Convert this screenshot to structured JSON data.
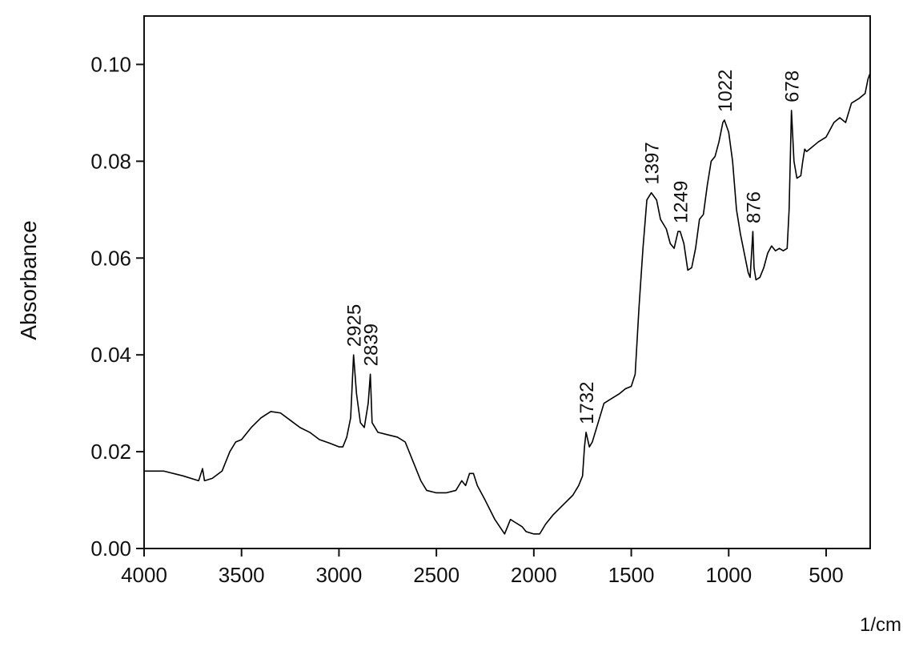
{
  "chart_data": {
    "type": "line",
    "ylabel": "Absorbance",
    "xlabel": "1/cm",
    "color": "#000000",
    "xlim": [
      4000,
      274
    ],
    "ylim": [
      0,
      0.11
    ],
    "xticks": [
      4000,
      3500,
      3000,
      2500,
      2000,
      1500,
      1000,
      500
    ],
    "yticks": [
      {
        "value": 0,
        "label": "0.00"
      },
      {
        "value": 0.02,
        "label": "0.02"
      },
      {
        "value": 0.04,
        "label": "0.04"
      },
      {
        "value": 0.06,
        "label": "0.06"
      },
      {
        "value": 0.08,
        "label": "0.08"
      },
      {
        "value": 0.1,
        "label": "0.10"
      }
    ],
    "peaks": [
      2925,
      2839,
      1732,
      1397,
      1249,
      1022,
      876,
      678
    ],
    "x": [
      4000,
      3900,
      3800,
      3720,
      3700,
      3690,
      3650,
      3600,
      3560,
      3530,
      3500,
      3450,
      3400,
      3350,
      3300,
      3250,
      3200,
      3150,
      3100,
      3050,
      3000,
      2980,
      2960,
      2940,
      2925,
      2910,
      2890,
      2870,
      2850,
      2839,
      2830,
      2800,
      2750,
      2700,
      2660,
      2620,
      2580,
      2550,
      2500,
      2450,
      2400,
      2370,
      2350,
      2330,
      2310,
      2290,
      2250,
      2200,
      2150,
      2120,
      2100,
      2060,
      2040,
      2000,
      1970,
      1940,
      1900,
      1850,
      1800,
      1770,
      1750,
      1740,
      1732,
      1715,
      1700,
      1670,
      1640,
      1600,
      1560,
      1530,
      1500,
      1480,
      1460,
      1440,
      1420,
      1397,
      1370,
      1350,
      1320,
      1300,
      1280,
      1260,
      1249,
      1230,
      1210,
      1190,
      1170,
      1150,
      1130,
      1110,
      1090,
      1070,
      1050,
      1030,
      1022,
      1000,
      980,
      960,
      940,
      920,
      900,
      890,
      876,
      870,
      860,
      840,
      820,
      800,
      780,
      760,
      740,
      720,
      700,
      690,
      678,
      665,
      650,
      630,
      620,
      610,
      600,
      570,
      540,
      500,
      460,
      430,
      400,
      370,
      330,
      300,
      285,
      276
    ],
    "values": [
      0.016,
      0.016,
      0.015,
      0.014,
      0.0165,
      0.014,
      0.0145,
      0.016,
      0.02,
      0.022,
      0.0225,
      0.025,
      0.027,
      0.0283,
      0.028,
      0.0265,
      0.025,
      0.024,
      0.0225,
      0.0218,
      0.021,
      0.021,
      0.023,
      0.027,
      0.04,
      0.032,
      0.026,
      0.025,
      0.03,
      0.036,
      0.026,
      0.024,
      0.0235,
      0.023,
      0.022,
      0.018,
      0.014,
      0.012,
      0.0115,
      0.0115,
      0.012,
      0.014,
      0.013,
      0.0155,
      0.0155,
      0.013,
      0.01,
      0.006,
      0.003,
      0.006,
      0.0055,
      0.0045,
      0.0035,
      0.003,
      0.003,
      0.005,
      0.007,
      0.009,
      0.011,
      0.013,
      0.015,
      0.021,
      0.024,
      0.021,
      0.022,
      0.026,
      0.03,
      0.031,
      0.032,
      0.033,
      0.0335,
      0.036,
      0.05,
      0.062,
      0.072,
      0.0735,
      0.072,
      0.068,
      0.066,
      0.063,
      0.062,
      0.0655,
      0.0655,
      0.063,
      0.0575,
      0.058,
      0.062,
      0.068,
      0.069,
      0.075,
      0.08,
      0.081,
      0.084,
      0.088,
      0.0885,
      0.086,
      0.08,
      0.07,
      0.065,
      0.061,
      0.057,
      0.056,
      0.0655,
      0.058,
      0.0555,
      0.056,
      0.058,
      0.061,
      0.0625,
      0.0615,
      0.062,
      0.0615,
      0.062,
      0.07,
      0.0905,
      0.08,
      0.0765,
      0.077,
      0.08,
      0.0825,
      0.082,
      0.083,
      0.084,
      0.085,
      0.088,
      0.089,
      0.088,
      0.092,
      0.093,
      0.094,
      0.097,
      0.098
    ]
  }
}
